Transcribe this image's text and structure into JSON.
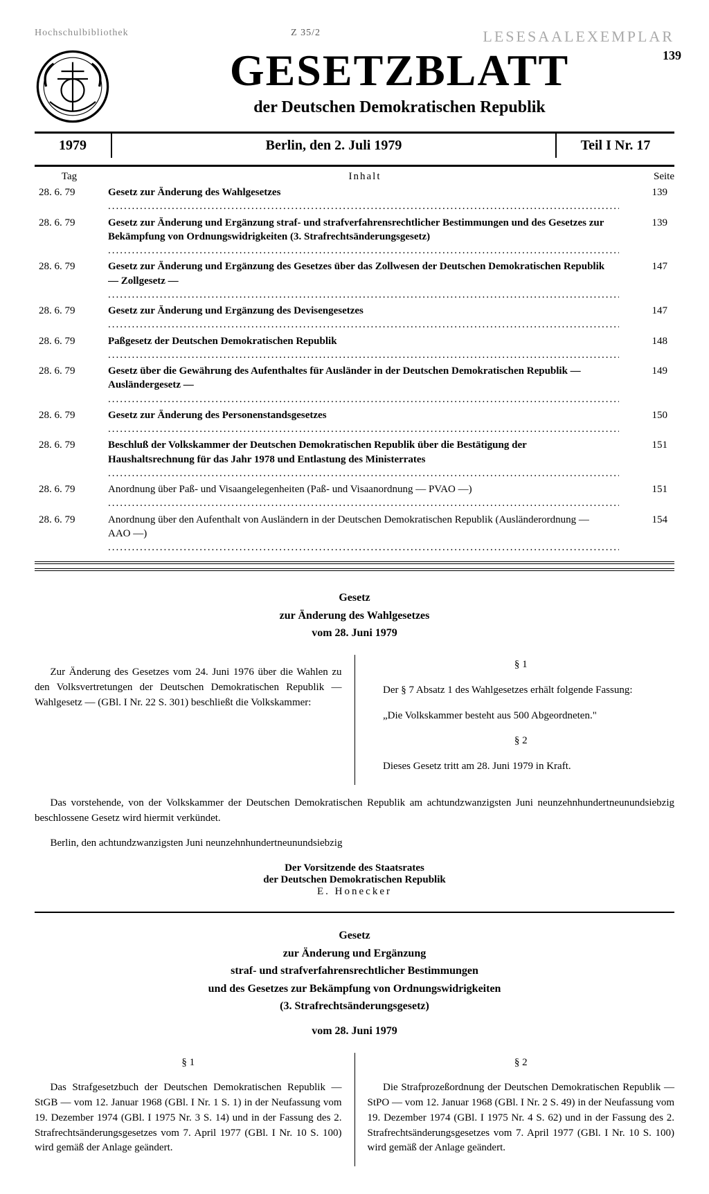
{
  "stamps": {
    "left": "Hochschulbibliothek",
    "center": "Z 35/2",
    "right": "Lesesaalexemplar"
  },
  "masthead": {
    "page_number": "139",
    "title": "GESETZBLATT",
    "subtitle": "der Deutschen Demokratischen Republik"
  },
  "dateline": {
    "year": "1979",
    "center": "Berlin, den 2. Juli 1979",
    "part": "Teil I  Nr. 17"
  },
  "toc": {
    "head_day": "Tag",
    "head_content": "Inhalt",
    "head_page": "Seite",
    "rows": [
      {
        "date": "28. 6. 79",
        "text": "Gesetz zur Änderung des Wahlgesetzes",
        "page": "139",
        "bold": true
      },
      {
        "date": "28. 6. 79",
        "text": "Gesetz zur Änderung und Ergänzung straf- und strafverfahrensrechtlicher Bestimmungen und des Gesetzes zur Bekämpfung von Ordnungswidrigkeiten (3. Strafrechtsänderungsgesetz)",
        "page": "139",
        "bold": true
      },
      {
        "date": "28. 6. 79",
        "text": "Gesetz zur Änderung und Ergänzung des Gesetzes über das Zollwesen der Deutschen Demokratischen Republik — Zollgesetz —",
        "page": "147",
        "bold": true
      },
      {
        "date": "28. 6. 79",
        "text": "Gesetz zur Änderung und Ergänzung des Devisengesetzes",
        "page": "147",
        "bold": true
      },
      {
        "date": "28. 6. 79",
        "text": "Paßgesetz der Deutschen Demokratischen Republik",
        "page": "148",
        "bold": true
      },
      {
        "date": "28. 6. 79",
        "text": "Gesetz über die Gewährung des Aufenthaltes für Ausländer in der Deutschen Demokratischen Republik — Ausländergesetz —",
        "page": "149",
        "bold": true
      },
      {
        "date": "28. 6. 79",
        "text": "Gesetz zur Änderung des Personenstandsgesetzes",
        "page": "150",
        "bold": true
      },
      {
        "date": "28. 6. 79",
        "text": "Beschluß der Volkskammer der Deutschen Demokratischen Republik über die Bestätigung der Haushaltsrechnung für das Jahr 1978 und Entlastung des Ministerrates",
        "page": "151",
        "bold": true
      },
      {
        "date": "28. 6. 79",
        "text": "Anordnung über Paß- und Visaangelegenheiten (Paß- und Visaanordnung — PVAO —)",
        "page": "151",
        "bold": false
      },
      {
        "date": "28. 6. 79",
        "text": "Anordnung über den Aufenthalt von Ausländern in der Deutschen Demokratischen Republik (Ausländerordnung — AAO —)",
        "page": "154",
        "bold": false
      }
    ]
  },
  "law1": {
    "line1": "Gesetz",
    "line2": "zur Änderung des Wahlgesetzes",
    "line3": "vom 28. Juni 1979",
    "left": "Zur Änderung des Gesetzes vom 24. Juni 1976 über die Wahlen zu den Volksvertretungen der Deutschen Demokratischen Republik — Wahlgesetz — (GBl. I Nr. 22 S. 301) beschließt die Volkskammer:",
    "s1_head": "§ 1",
    "s1_a": "Der § 7 Absatz 1 des Wahlgesetzes erhält folgende Fassung:",
    "s1_b": "„Die Volkskammer besteht aus 500 Abgeordneten.\"",
    "s2_head": "§ 2",
    "s2": "Dieses Gesetz tritt am 28. Juni 1979 in Kraft.",
    "proclaim1": "Das vorstehende, von der Volkskammer der Deutschen Demokratischen Republik am achtundzwanzigsten Juni neunzehnhundertneunundsiebzig beschlossene Gesetz wird hiermit verkündet.",
    "proclaim2": "Berlin, den achtundzwanzigsten Juni neunzehnhundertneunundsiebzig",
    "sig1": "Der Vorsitzende des Staatsrates",
    "sig2": "der Deutschen Demokratischen Republik",
    "sig3": "E. Honecker"
  },
  "law2": {
    "line1": "Gesetz",
    "line2": "zur Änderung und Ergänzung",
    "line3": "straf- und strafverfahrensrechtlicher Bestimmungen",
    "line4": "und des Gesetzes zur Bekämpfung von Ordnungswidrigkeiten",
    "line5": "(3. Strafrechtsänderungsgesetz)",
    "line6": "vom 28. Juni 1979",
    "s1_head": "§ 1",
    "s1": "Das Strafgesetzbuch der Deutschen Demokratischen Republik — StGB — vom 12. Januar 1968 (GBl. I Nr. 1 S. 1) in der Neufassung vom 19. Dezember 1974 (GBl. I 1975 Nr. 3 S. 14) und in der Fassung des 2. Strafrechtsänderungsgesetzes vom 7. April 1977 (GBl. I Nr. 10 S. 100) wird gemäß der Anlage geändert.",
    "s2_head": "§ 2",
    "s2": "Die Strafprozeßordnung der Deutschen Demokratischen Republik — StPO — vom 12. Januar 1968 (GBl. I Nr. 2 S. 49) in der Neufassung vom 19. Dezember 1974 (GBl. I 1975 Nr. 4 S. 62) und in der Fassung des 2. Strafrechtsänderungsgesetzes vom 7. April 1977 (GBl. I Nr. 10 S. 100) wird gemäß der Anlage geändert."
  }
}
